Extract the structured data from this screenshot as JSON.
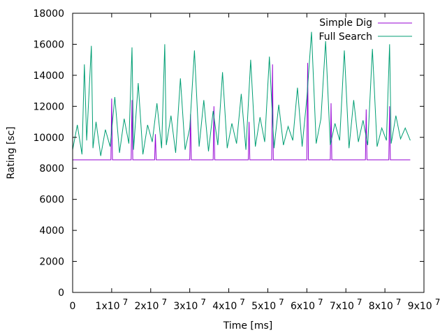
{
  "chart_data": {
    "type": "line",
    "title": "",
    "xlabel": "Time [ms]",
    "ylabel": "Rating [sc]",
    "xlim": [
      0,
      90000000
    ],
    "ylim": [
      0,
      18000
    ],
    "grid": false,
    "legend_position": "top-right",
    "x_ticks": [
      {
        "value": 0,
        "base": "0",
        "exp": ""
      },
      {
        "value": 10000000,
        "base": "1x10",
        "exp": "7"
      },
      {
        "value": 20000000,
        "base": "2x10",
        "exp": "7"
      },
      {
        "value": 30000000,
        "base": "3x10",
        "exp": "7"
      },
      {
        "value": 40000000,
        "base": "4x10",
        "exp": "7"
      },
      {
        "value": 50000000,
        "base": "5x10",
        "exp": "7"
      },
      {
        "value": 60000000,
        "base": "6x10",
        "exp": "7"
      },
      {
        "value": 70000000,
        "base": "7x10",
        "exp": "7"
      },
      {
        "value": 80000000,
        "base": "8x10",
        "exp": "7"
      },
      {
        "value": 90000000,
        "base": "9x10",
        "exp": "7"
      }
    ],
    "y_ticks": [
      {
        "value": 0,
        "label": "0"
      },
      {
        "value": 2000,
        "label": "2000"
      },
      {
        "value": 4000,
        "label": "4000"
      },
      {
        "value": 6000,
        "label": "6000"
      },
      {
        "value": 8000,
        "label": "8000"
      },
      {
        "value": 10000,
        "label": "10000"
      },
      {
        "value": 12000,
        "label": "12000"
      },
      {
        "value": 14000,
        "label": "14000"
      },
      {
        "value": 16000,
        "label": "16000"
      },
      {
        "value": 18000,
        "label": "18000"
      }
    ],
    "series": [
      {
        "name": "Simple Dig",
        "color": "#9400d3",
        "x": [
          0,
          5000000,
          9800000,
          10000000,
          10200000,
          15000000,
          15200000,
          15400000,
          20000000,
          21000000,
          21200000,
          21400000,
          26000000,
          30000000,
          30200000,
          30400000,
          36000000,
          36200000,
          36400000,
          40000000,
          45000000,
          45200000,
          45400000,
          48000000,
          51000000,
          51200000,
          51400000,
          56000000,
          60000000,
          60200000,
          60400000,
          66000000,
          66200000,
          66400000,
          70000000,
          75000000,
          75200000,
          75400000,
          80000000,
          81000000,
          81200000,
          81400000,
          86500000
        ],
        "y": [
          8550,
          8550,
          8550,
          12500,
          8550,
          8550,
          12400,
          8550,
          8550,
          8550,
          10200,
          8550,
          8550,
          8550,
          11500,
          8550,
          8550,
          12000,
          8550,
          8550,
          8550,
          11000,
          8550,
          8550,
          8550,
          14700,
          8550,
          8550,
          8550,
          14800,
          8550,
          8550,
          12200,
          8550,
          8550,
          8550,
          11800,
          8550,
          8550,
          8550,
          12000,
          8550,
          8550
        ]
      },
      {
        "name": "Full Search",
        "color": "#009e73",
        "x": [
          0,
          1200000,
          2400000,
          3000000,
          3600000,
          4800000,
          5200000,
          6000000,
          7200000,
          8400000,
          9600000,
          10800000,
          12000000,
          13200000,
          14400000,
          15200000,
          15600000,
          16800000,
          18000000,
          19200000,
          20400000,
          21600000,
          22800000,
          23600000,
          24000000,
          25200000,
          26400000,
          27600000,
          28800000,
          30000000,
          31200000,
          32400000,
          33600000,
          34800000,
          36000000,
          37200000,
          38400000,
          39600000,
          40800000,
          42000000,
          43200000,
          44400000,
          45600000,
          46800000,
          48000000,
          49200000,
          50400000,
          51600000,
          52800000,
          54000000,
          55200000,
          56400000,
          57600000,
          58800000,
          60000000,
          61200000,
          62400000,
          63600000,
          64800000,
          66000000,
          67200000,
          68400000,
          69600000,
          70800000,
          72000000,
          73200000,
          74400000,
          75600000,
          76800000,
          78000000,
          79200000,
          80400000,
          81200000,
          81600000,
          82800000,
          84000000,
          85200000,
          86500000
        ],
        "y": [
          9200,
          10800,
          8900,
          14700,
          9800,
          15900,
          9300,
          11000,
          8800,
          10500,
          9400,
          12600,
          9000,
          11200,
          9600,
          15800,
          9200,
          13500,
          8900,
          10800,
          9700,
          12200,
          9300,
          16000,
          9500,
          11400,
          9000,
          13800,
          9200,
          10600,
          15600,
          9400,
          12400,
          9100,
          11700,
          9500,
          14200,
          9300,
          10900,
          9600,
          12800,
          9200,
          15000,
          9400,
          11300,
          9700,
          15200,
          9300,
          12100,
          9500,
          10700,
          9800,
          13200,
          9400,
          12500,
          16800,
          9600,
          11200,
          16200,
          9500,
          10900,
          9800,
          15600,
          9300,
          12400,
          9700,
          11100,
          9500,
          15700,
          9400,
          10600,
          9800,
          16000,
          9600,
          11400,
          9900,
          10600,
          9800
        ]
      }
    ]
  }
}
